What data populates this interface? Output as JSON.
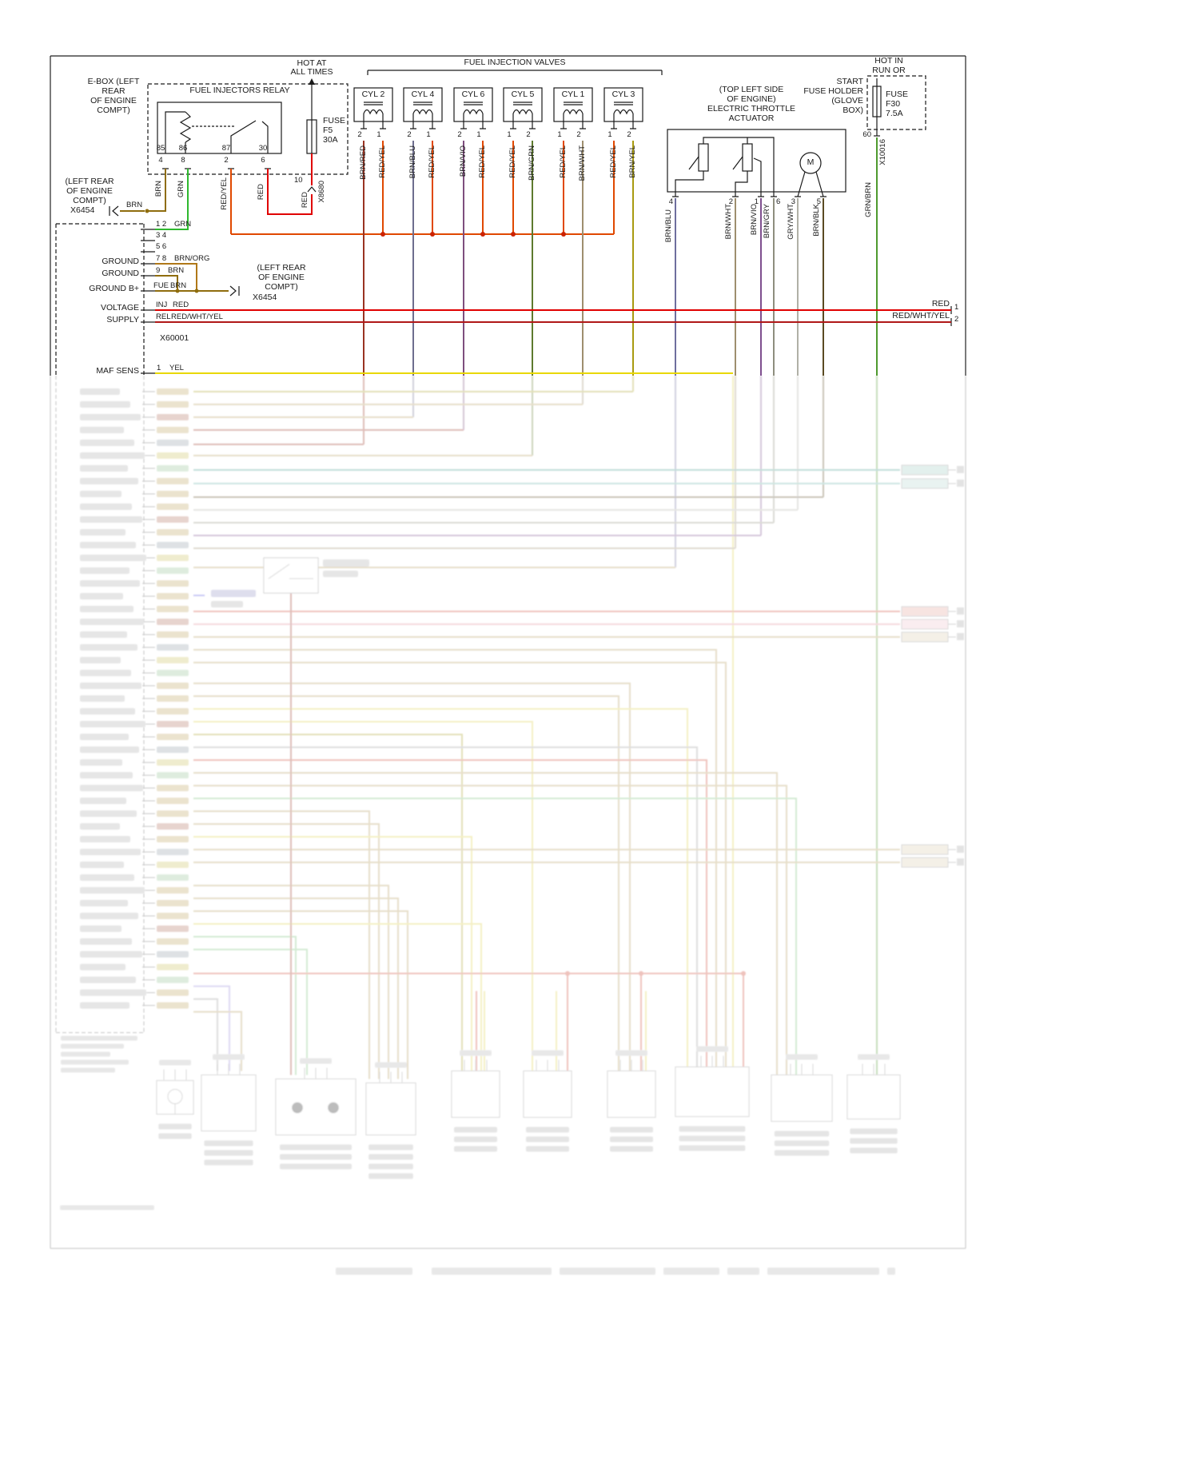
{
  "header": {
    "ebox": [
      "E-BOX (LEFT",
      "REAR",
      "OF ENGINE",
      "COMPT)"
    ],
    "hot_all_times": [
      "HOT AT",
      "ALL TIMES"
    ],
    "hot_run_start": [
      "HOT IN",
      "RUN OR",
      "START"
    ],
    "fuse_holder": [
      "FUSE HOLDER",
      "(GLOVE",
      "BOX)"
    ]
  },
  "relay": {
    "title": "FUEL INJECTORS RELAY",
    "pins_top": [
      "85",
      "86",
      "87",
      "30"
    ],
    "pins_bottom": [
      "4",
      "8",
      "2",
      "6"
    ],
    "wires": [
      "BRN",
      "GRN",
      "RED/YEL",
      "RED"
    ]
  },
  "fuse_f5": {
    "name": "FUSE",
    "id": "F5",
    "rating": "30A",
    "pin": "10",
    "connector": "X8680",
    "wire": "RED"
  },
  "fuse_f30": {
    "name": "FUSE",
    "id": "F30",
    "rating": "7.5A",
    "pin": "60",
    "connector": "X10016",
    "wire": "GRN/BRN"
  },
  "injection_valves": {
    "title": "FUEL INJECTION VALVES",
    "cylinders": [
      {
        "name": "CYL 2",
        "pin_left": "2",
        "pin_right": "1",
        "wire_left": "BRN/RED",
        "wire_right": "RED/YEL"
      },
      {
        "name": "CYL 4",
        "pin_left": "2",
        "pin_right": "1",
        "wire_left": "BRN/BLU",
        "wire_right": "RED/YEL"
      },
      {
        "name": "CYL 6",
        "pin_left": "2",
        "pin_right": "1",
        "wire_left": "BRN/VIO",
        "wire_right": "RED/YEL"
      },
      {
        "name": "CYL 5",
        "pin_left": "1",
        "pin_right": "2",
        "wire_left": "RED/YEL",
        "wire_right": "BRN/GRN"
      },
      {
        "name": "CYL 1",
        "pin_left": "1",
        "pin_right": "2",
        "wire_left": "RED/YEL",
        "wire_right": "BRN/WHT"
      },
      {
        "name": "CYL 3",
        "pin_left": "1",
        "pin_right": "2",
        "wire_left": "RED/YEL",
        "wire_right": "BRN/YEL"
      }
    ]
  },
  "throttle": {
    "location": [
      "(TOP LEFT SIDE",
      "OF ENGINE)",
      "ELECTRIC THROTTLE",
      "ACTUATOR"
    ],
    "motor": "M",
    "pins": [
      "4",
      "2",
      "1",
      "6",
      "3",
      "5"
    ],
    "wires": [
      "BRN/BLU",
      "BRN/WHT",
      "BRN/VIO",
      "BRN/GRY",
      "GRY/WHT",
      "BRN/BLK"
    ]
  },
  "ecu": {
    "connector": "X60001",
    "x6454_top": {
      "location": [
        "(LEFT REAR",
        "OF ENGINE",
        "COMPT)"
      ],
      "name": "X6454",
      "wire": "BRN"
    },
    "x6454_mid": {
      "location": [
        "(LEFT REAR",
        "OF ENGINE",
        "COMPT)"
      ],
      "name": "X6454"
    },
    "left_labels": [
      "GROUND",
      "GROUND",
      "GROUND B+",
      "VOLTAGE",
      "SUPPLY",
      "MAF SENS"
    ],
    "rows": [
      {
        "pin": "1 2",
        "wire": "GRN"
      },
      {
        "pin": "3 4",
        "wire": ""
      },
      {
        "pin": "5 6",
        "wire": ""
      },
      {
        "pin": "7 8",
        "wire": "BRN/ORG"
      },
      {
        "pin": "9",
        "wire": "BRN"
      },
      {
        "pin": "FUE",
        "wire": "BRN"
      },
      {
        "pin": "INJ",
        "wire": "RED"
      },
      {
        "pin": "REL",
        "wire": "RED/WHT/YEL"
      },
      {
        "pin": "1",
        "wire": "YEL"
      }
    ],
    "right_outputs": [
      {
        "label": "RED",
        "pin": "1"
      },
      {
        "label": "RED/WHT/YEL",
        "pin": "2"
      }
    ]
  },
  "colors": {
    "red": "#e00000",
    "red_yel": "#e04800",
    "red_wht_yel": "#b01818",
    "brn": "#8f6d0e",
    "grn": "#2eb82e",
    "yel": "#e8d800",
    "grn_brn": "#4e9a2e",
    "brn_org": "#b07818"
  }
}
